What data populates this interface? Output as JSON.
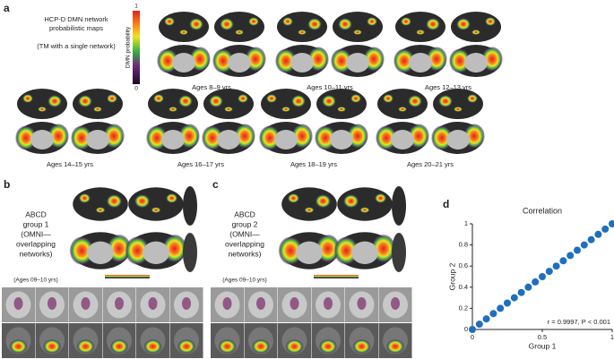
{
  "panel_a": {
    "letter": "a",
    "title_lines": [
      "HCP-D DMN network",
      "probabilistic maps"
    ],
    "subtitle": "(TM with a single network)",
    "colorbar_label": "DMN probability",
    "colorbar_ticks": [
      0,
      1
    ],
    "ages": [
      "Ages 8–9 yrs",
      "Ages 10–11 yrs",
      "Ages 12–13 yrs",
      "Ages 14–15 yrs",
      "Ages 16–17 yrs",
      "Ages 18–19 yrs",
      "Ages 20–21 yrs"
    ]
  },
  "panel_b": {
    "letter": "b",
    "label_lines": [
      "ABCD",
      "group 1",
      "(OMNI—",
      "overlapping",
      "networks)"
    ],
    "ages": "(Ages 09–10 yrs)"
  },
  "panel_c": {
    "letter": "c",
    "label_lines": [
      "ABCD",
      "group 2",
      "(OMNI—",
      "overlapping",
      "networks)"
    ],
    "ages": "(Ages 09–10 yrs)"
  },
  "chart_data": {
    "type": "scatter",
    "panel_label": "d",
    "title": "Correlation",
    "x_label": "Group 1",
    "y_label": "Group 2",
    "annotation": "r = 0.9997, P < 0.001",
    "color": "#1f6fbf",
    "x": [
      0,
      0.05,
      0.1,
      0.15,
      0.2,
      0.25,
      0.3,
      0.35,
      0.4,
      0.45,
      0.5,
      0.55,
      0.6,
      0.65,
      0.7,
      0.75,
      0.8,
      0.85,
      0.9,
      0.95,
      1
    ],
    "values": [
      0,
      0.05,
      0.1,
      0.15,
      0.2,
      0.25,
      0.3,
      0.35,
      0.4,
      0.45,
      0.5,
      0.55,
      0.6,
      0.65,
      0.7,
      0.75,
      0.8,
      0.85,
      0.9,
      0.95,
      1
    ],
    "xlim": [
      0,
      1
    ],
    "ylim": [
      0,
      1
    ],
    "xticks": [
      0,
      0.5,
      1
    ],
    "yticks": [
      0,
      0.2,
      0.4,
      0.6,
      0.8,
      1
    ]
  }
}
